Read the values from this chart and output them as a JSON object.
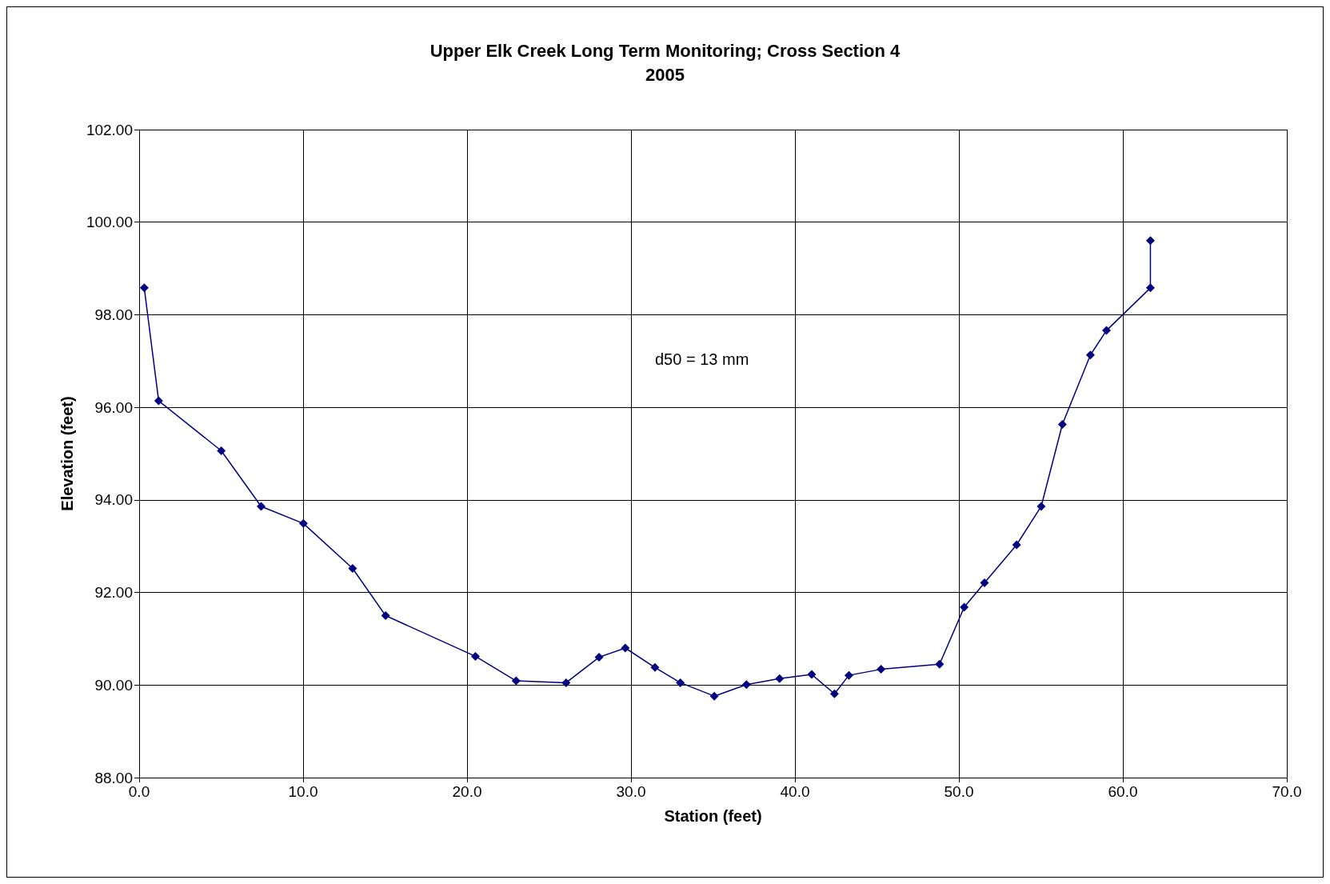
{
  "chart_data": {
    "type": "line",
    "title": "Upper Elk Creek Long Term Monitoring; Cross Section 4",
    "subtitle": "2005",
    "xlabel": "Station (feet)",
    "ylabel": "Elevation (feet)",
    "annotations": [
      "d50 = 13 mm"
    ],
    "series": [
      {
        "color": "#000080",
        "x": [
          0.31,
          1.19,
          5.01,
          7.44,
          10.02,
          13.02,
          15.03,
          20.51,
          22.99,
          26.04,
          28.05,
          29.65,
          31.46,
          33.01,
          35.08,
          37.04,
          39.06,
          41.02,
          42.41,
          43.29,
          45.25,
          48.82,
          50.32,
          51.56,
          53.52,
          55.02,
          56.31,
          58.02,
          59.0,
          61.68,
          61.68
        ],
        "values": [
          98.58,
          96.14,
          95.06,
          93.86,
          93.49,
          92.52,
          91.5,
          90.62,
          90.09,
          90.05,
          90.6,
          90.8,
          90.38,
          90.05,
          89.76,
          90.01,
          90.14,
          90.23,
          89.81,
          90.21,
          90.34,
          90.45,
          91.68,
          92.21,
          93.03,
          93.86,
          95.63,
          97.13,
          97.66,
          98.58,
          99.6
        ]
      }
    ],
    "xlim": [
      0,
      70
    ],
    "xticks": [
      {
        "value": 0,
        "label": "0.0"
      },
      {
        "value": 10,
        "label": "10.0"
      },
      {
        "value": 20,
        "label": "20.0"
      },
      {
        "value": 30,
        "label": "30.0"
      },
      {
        "value": 40,
        "label": "40.0"
      },
      {
        "value": 50,
        "label": "50.0"
      },
      {
        "value": 60,
        "label": "60.0"
      },
      {
        "value": 70,
        "label": "70.0"
      }
    ],
    "ylim": [
      88,
      102
    ],
    "yticks": [
      {
        "value": 88,
        "label": "88.00"
      },
      {
        "value": 90,
        "label": "90.00"
      },
      {
        "value": 92,
        "label": "92.00"
      },
      {
        "value": 94,
        "label": "94.00"
      },
      {
        "value": 96,
        "label": "96.00"
      },
      {
        "value": 98,
        "label": "98.00"
      },
      {
        "value": 100,
        "label": "100.00"
      },
      {
        "value": 102,
        "label": "102.00"
      }
    ],
    "grid": true,
    "marker": "diamond",
    "line_style": "solid"
  }
}
